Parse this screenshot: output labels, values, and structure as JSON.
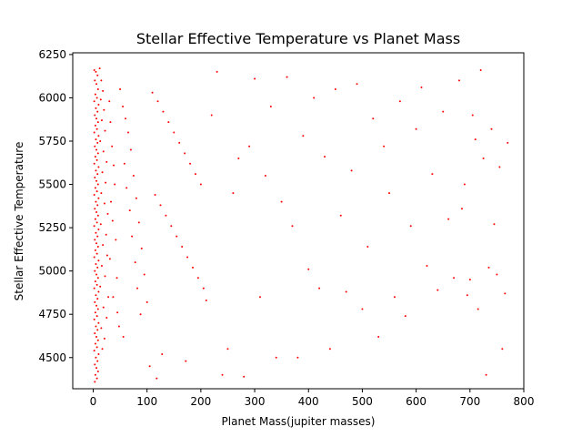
{
  "chart_data": {
    "type": "scatter",
    "title": "Stellar Effective Temperature vs Planet Mass",
    "xlabel": "Planet Mass(jupiter masses)",
    "ylabel": "Stellar Effective Temperature",
    "xlim": [
      -38,
      800
    ],
    "ylim": [
      4320,
      6260
    ],
    "xticks": [
      0,
      100,
      200,
      300,
      400,
      500,
      600,
      700,
      800
    ],
    "yticks": [
      4500,
      4750,
      5000,
      5250,
      5500,
      5750,
      6000,
      6250
    ],
    "grid": false,
    "marker_color": "#ff0000",
    "series": [
      {
        "points": [
          [
            2,
            6160
          ],
          [
            5,
            6150
          ],
          [
            8,
            6130
          ],
          [
            3,
            6100
          ],
          [
            6,
            6080
          ],
          [
            9,
            6050
          ],
          [
            4,
            6020
          ],
          [
            7,
            6000
          ],
          [
            2,
            5980
          ],
          [
            10,
            5960
          ],
          [
            5,
            5940
          ],
          [
            8,
            5920
          ],
          [
            3,
            5900
          ],
          [
            6,
            5880
          ],
          [
            9,
            5860
          ],
          [
            4,
            5840
          ],
          [
            7,
            5820
          ],
          [
            2,
            5800
          ],
          [
            10,
            5780
          ],
          [
            5,
            5760
          ],
          [
            8,
            5740
          ],
          [
            3,
            5720
          ],
          [
            6,
            5700
          ],
          [
            9,
            5680
          ],
          [
            4,
            5660
          ],
          [
            7,
            5640
          ],
          [
            2,
            5620
          ],
          [
            10,
            5600
          ],
          [
            5,
            5580
          ],
          [
            8,
            5560
          ],
          [
            3,
            5540
          ],
          [
            6,
            5520
          ],
          [
            9,
            5500
          ],
          [
            4,
            5480
          ],
          [
            7,
            5460
          ],
          [
            2,
            5440
          ],
          [
            10,
            5420
          ],
          [
            5,
            5400
          ],
          [
            8,
            5380
          ],
          [
            3,
            5360
          ],
          [
            6,
            5340
          ],
          [
            9,
            5320
          ],
          [
            4,
            5300
          ],
          [
            7,
            5280
          ],
          [
            2,
            5260
          ],
          [
            10,
            5240
          ],
          [
            5,
            5220
          ],
          [
            8,
            5200
          ],
          [
            3,
            5180
          ],
          [
            6,
            5160
          ],
          [
            9,
            5140
          ],
          [
            4,
            5120
          ],
          [
            7,
            5100
          ],
          [
            2,
            5080
          ],
          [
            10,
            5060
          ],
          [
            5,
            5040
          ],
          [
            8,
            5020
          ],
          [
            3,
            5000
          ],
          [
            6,
            4980
          ],
          [
            9,
            4960
          ],
          [
            4,
            4940
          ],
          [
            7,
            4920
          ],
          [
            2,
            4900
          ],
          [
            10,
            4880
          ],
          [
            5,
            4860
          ],
          [
            8,
            4840
          ],
          [
            3,
            4820
          ],
          [
            6,
            4800
          ],
          [
            9,
            4780
          ],
          [
            4,
            4760
          ],
          [
            7,
            4740
          ],
          [
            2,
            4720
          ],
          [
            10,
            4700
          ],
          [
            5,
            4680
          ],
          [
            8,
            4660
          ],
          [
            3,
            4640
          ],
          [
            6,
            4620
          ],
          [
            9,
            4600
          ],
          [
            4,
            4580
          ],
          [
            7,
            4560
          ],
          [
            2,
            4540
          ],
          [
            10,
            4520
          ],
          [
            5,
            4500
          ],
          [
            8,
            4480
          ],
          [
            3,
            4460
          ],
          [
            6,
            4440
          ],
          [
            9,
            4420
          ],
          [
            4,
            4400
          ],
          [
            7,
            4380
          ],
          [
            3,
            4360
          ],
          [
            12,
            6170
          ],
          [
            15,
            6100
          ],
          [
            18,
            6040
          ],
          [
            14,
            5990
          ],
          [
            20,
            5930
          ],
          [
            16,
            5870
          ],
          [
            22,
            5810
          ],
          [
            13,
            5750
          ],
          [
            19,
            5690
          ],
          [
            25,
            5630
          ],
          [
            17,
            5570
          ],
          [
            23,
            5510
          ],
          [
            15,
            5450
          ],
          [
            21,
            5390
          ],
          [
            27,
            5330
          ],
          [
            14,
            5270
          ],
          [
            24,
            5210
          ],
          [
            18,
            5150
          ],
          [
            26,
            5090
          ],
          [
            16,
            5030
          ],
          [
            22,
            4970
          ],
          [
            13,
            4910
          ],
          [
            28,
            4850
          ],
          [
            19,
            4790
          ],
          [
            25,
            4730
          ],
          [
            15,
            4670
          ],
          [
            21,
            4610
          ],
          [
            17,
            4550
          ],
          [
            30,
            5980
          ],
          [
            32,
            5860
          ],
          [
            35,
            5720
          ],
          [
            38,
            5610
          ],
          [
            40,
            5500
          ],
          [
            33,
            5400
          ],
          [
            36,
            5290
          ],
          [
            42,
            5180
          ],
          [
            31,
            5070
          ],
          [
            44,
            4960
          ],
          [
            37,
            4850
          ],
          [
            45,
            4760
          ],
          [
            50,
            6050
          ],
          [
            55,
            5950
          ],
          [
            60,
            5880
          ],
          [
            65,
            5800
          ],
          [
            70,
            5700
          ],
          [
            58,
            5620
          ],
          [
            75,
            5550
          ],
          [
            62,
            5480
          ],
          [
            80,
            5420
          ],
          [
            68,
            5350
          ],
          [
            85,
            5280
          ],
          [
            72,
            5200
          ],
          [
            90,
            5130
          ],
          [
            78,
            5050
          ],
          [
            95,
            4980
          ],
          [
            82,
            4900
          ],
          [
            100,
            4820
          ],
          [
            88,
            4750
          ],
          [
            48,
            4680
          ],
          [
            56,
            4620
          ],
          [
            110,
            6030
          ],
          [
            120,
            5980
          ],
          [
            130,
            5920
          ],
          [
            140,
            5860
          ],
          [
            150,
            5800
          ],
          [
            160,
            5740
          ],
          [
            170,
            5680
          ],
          [
            180,
            5620
          ],
          [
            190,
            5560
          ],
          [
            200,
            5500
          ],
          [
            115,
            5440
          ],
          [
            125,
            5380
          ],
          [
            135,
            5320
          ],
          [
            145,
            5260
          ],
          [
            155,
            5200
          ],
          [
            165,
            5140
          ],
          [
            175,
            5080
          ],
          [
            185,
            5020
          ],
          [
            195,
            4960
          ],
          [
            205,
            4900
          ],
          [
            105,
            4450
          ],
          [
            118,
            4380
          ],
          [
            128,
            4520
          ],
          [
            172,
            4480
          ],
          [
            210,
            4830
          ],
          [
            220,
            5900
          ],
          [
            230,
            6150
          ],
          [
            240,
            4400
          ],
          [
            250,
            4550
          ],
          [
            260,
            5450
          ],
          [
            270,
            5650
          ],
          [
            280,
            4390
          ],
          [
            290,
            5720
          ],
          [
            300,
            6110
          ],
          [
            310,
            4850
          ],
          [
            320,
            5550
          ],
          [
            330,
            5950
          ],
          [
            340,
            4500
          ],
          [
            350,
            5400
          ],
          [
            360,
            6120
          ],
          [
            370,
            5260
          ],
          [
            380,
            4500
          ],
          [
            390,
            5780
          ],
          [
            400,
            5010
          ],
          [
            410,
            6000
          ],
          [
            420,
            4900
          ],
          [
            430,
            5660
          ],
          [
            440,
            4550
          ],
          [
            450,
            6050
          ],
          [
            460,
            5320
          ],
          [
            470,
            4880
          ],
          [
            480,
            5580
          ],
          [
            490,
            6080
          ],
          [
            500,
            4780
          ],
          [
            510,
            5140
          ],
          [
            520,
            5880
          ],
          [
            530,
            4620
          ],
          [
            540,
            5720
          ],
          [
            550,
            5450
          ],
          [
            560,
            4850
          ],
          [
            570,
            5980
          ],
          [
            580,
            4740
          ],
          [
            590,
            5260
          ],
          [
            600,
            5820
          ],
          [
            610,
            6060
          ],
          [
            620,
            5030
          ],
          [
            630,
            5560
          ],
          [
            640,
            4890
          ],
          [
            650,
            5920
          ],
          [
            660,
            5300
          ],
          [
            670,
            4960
          ],
          [
            680,
            6100
          ],
          [
            690,
            5500
          ],
          [
            700,
            4950
          ],
          [
            710,
            5760
          ],
          [
            720,
            6160
          ],
          [
            730,
            4400
          ],
          [
            740,
            5820
          ],
          [
            750,
            4980
          ],
          [
            760,
            4550
          ],
          [
            765,
            4870
          ],
          [
            770,
            5740
          ],
          [
            755,
            5600
          ],
          [
            745,
            5270
          ],
          [
            735,
            5020
          ],
          [
            725,
            5650
          ],
          [
            715,
            4780
          ],
          [
            705,
            5900
          ],
          [
            695,
            4860
          ],
          [
            685,
            5360
          ]
        ]
      }
    ]
  }
}
